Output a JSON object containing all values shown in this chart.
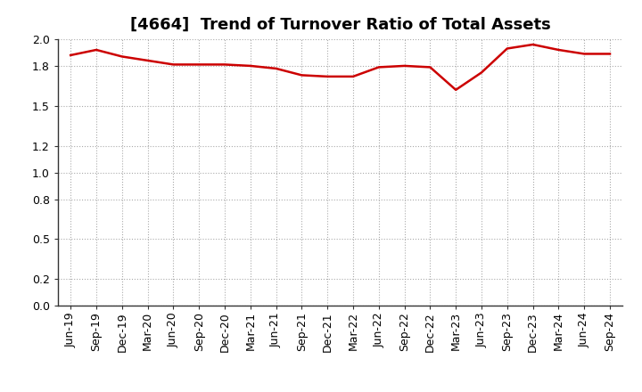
{
  "title": "[4664]  Trend of Turnover Ratio of Total Assets",
  "x_labels": [
    "Jun-19",
    "Sep-19",
    "Dec-19",
    "Mar-20",
    "Jun-20",
    "Sep-20",
    "Dec-20",
    "Mar-21",
    "Jun-21",
    "Sep-21",
    "Dec-21",
    "Mar-22",
    "Jun-22",
    "Sep-22",
    "Dec-22",
    "Mar-23",
    "Jun-23",
    "Sep-23",
    "Dec-23",
    "Mar-24",
    "Jun-24",
    "Sep-24"
  ],
  "y_values": [
    1.88,
    1.92,
    1.87,
    1.84,
    1.81,
    1.81,
    1.81,
    1.8,
    1.78,
    1.73,
    1.72,
    1.72,
    1.79,
    1.8,
    1.79,
    1.62,
    1.75,
    1.93,
    1.96,
    1.92,
    1.89,
    1.89
  ],
  "line_color": "#cc0000",
  "background_color": "#ffffff",
  "plot_bg_color": "#ffffff",
  "grid_color": "#aaaaaa",
  "ylim": [
    0.0,
    2.0
  ],
  "yticks": [
    0.0,
    0.2,
    0.5,
    0.8,
    1.0,
    1.2,
    1.5,
    1.8,
    2.0
  ],
  "title_fontsize": 13,
  "tick_fontsize": 9,
  "line_width": 1.8
}
